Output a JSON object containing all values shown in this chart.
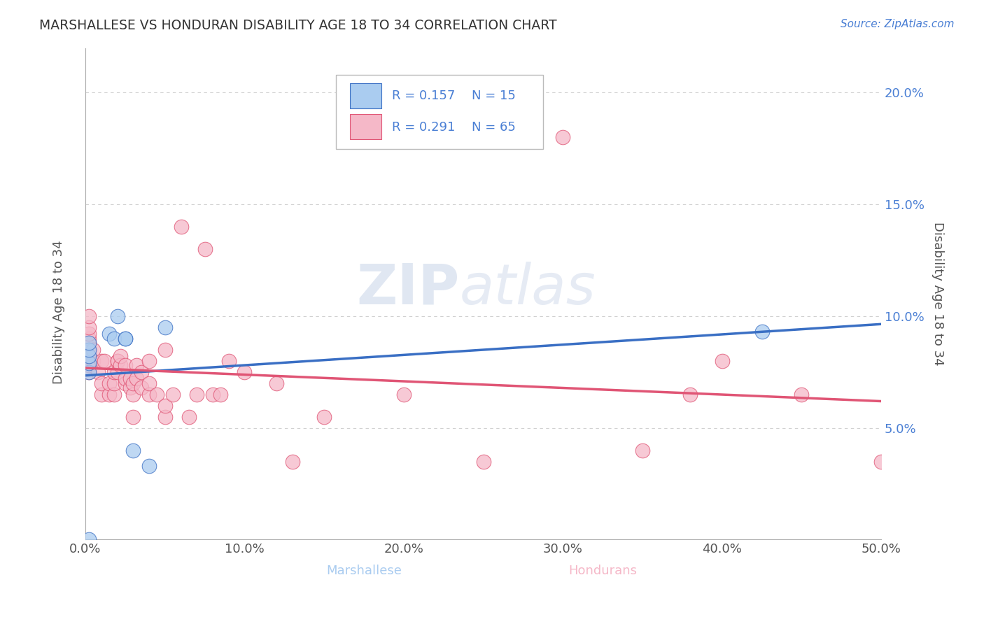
{
  "title": "MARSHALLESE VS HONDURAN DISABILITY AGE 18 TO 34 CORRELATION CHART",
  "source_text": "Source: ZipAtlas.com",
  "ylabel": "Disability Age 18 to 34",
  "xlabel_marshallese": "Marshallese",
  "xlabel_hondurans": "Hondurans",
  "xlim": [
    0.0,
    0.5
  ],
  "ylim": [
    0.0,
    0.22
  ],
  "xtick_labels": [
    "0.0%",
    "10.0%",
    "20.0%",
    "30.0%",
    "40.0%",
    "50.0%"
  ],
  "xtick_vals": [
    0.0,
    0.1,
    0.2,
    0.3,
    0.4,
    0.5
  ],
  "ytick_labels": [
    "5.0%",
    "10.0%",
    "15.0%",
    "20.0%"
  ],
  "ytick_vals": [
    0.05,
    0.1,
    0.15,
    0.2
  ],
  "legend_R_marshallese": "R = 0.157",
  "legend_N_marshallese": "N = 15",
  "legend_R_hondurans": "R = 0.291",
  "legend_N_hondurans": "N = 65",
  "marshallese_color": "#aaccf0",
  "hondurans_color": "#f5b8c8",
  "marshallese_line_color": "#3a6fc4",
  "hondurans_line_color": "#e05575",
  "watermark_zip": "ZIP",
  "watermark_atlas": "atlas",
  "background_color": "#ffffff",
  "marshallese_x": [
    0.002,
    0.002,
    0.002,
    0.002,
    0.002,
    0.002,
    0.015,
    0.018,
    0.02,
    0.025,
    0.025,
    0.03,
    0.04,
    0.05,
    0.425
  ],
  "marshallese_y": [
    0.0,
    0.075,
    0.079,
    0.082,
    0.085,
    0.088,
    0.092,
    0.09,
    0.1,
    0.09,
    0.09,
    0.04,
    0.033,
    0.095,
    0.093
  ],
  "hondurans_x": [
    0.002,
    0.002,
    0.002,
    0.002,
    0.002,
    0.002,
    0.002,
    0.002,
    0.002,
    0.005,
    0.005,
    0.008,
    0.01,
    0.01,
    0.01,
    0.012,
    0.015,
    0.015,
    0.018,
    0.018,
    0.018,
    0.02,
    0.02,
    0.02,
    0.022,
    0.022,
    0.025,
    0.025,
    0.025,
    0.028,
    0.028,
    0.03,
    0.03,
    0.03,
    0.032,
    0.032,
    0.035,
    0.035,
    0.04,
    0.04,
    0.04,
    0.045,
    0.05,
    0.05,
    0.05,
    0.055,
    0.06,
    0.065,
    0.07,
    0.075,
    0.08,
    0.085,
    0.09,
    0.1,
    0.12,
    0.13,
    0.15,
    0.2,
    0.25,
    0.3,
    0.35,
    0.38,
    0.4,
    0.45,
    0.5
  ],
  "hondurans_y": [
    0.075,
    0.078,
    0.082,
    0.085,
    0.088,
    0.09,
    0.092,
    0.095,
    0.1,
    0.08,
    0.085,
    0.075,
    0.065,
    0.07,
    0.08,
    0.08,
    0.065,
    0.07,
    0.065,
    0.07,
    0.075,
    0.075,
    0.08,
    0.08,
    0.078,
    0.082,
    0.07,
    0.072,
    0.078,
    0.068,
    0.072,
    0.055,
    0.065,
    0.07,
    0.072,
    0.078,
    0.068,
    0.075,
    0.065,
    0.07,
    0.08,
    0.065,
    0.055,
    0.06,
    0.085,
    0.065,
    0.14,
    0.055,
    0.065,
    0.13,
    0.065,
    0.065,
    0.08,
    0.075,
    0.07,
    0.035,
    0.055,
    0.065,
    0.035,
    0.18,
    0.04,
    0.065,
    0.08,
    0.065,
    0.035
  ]
}
